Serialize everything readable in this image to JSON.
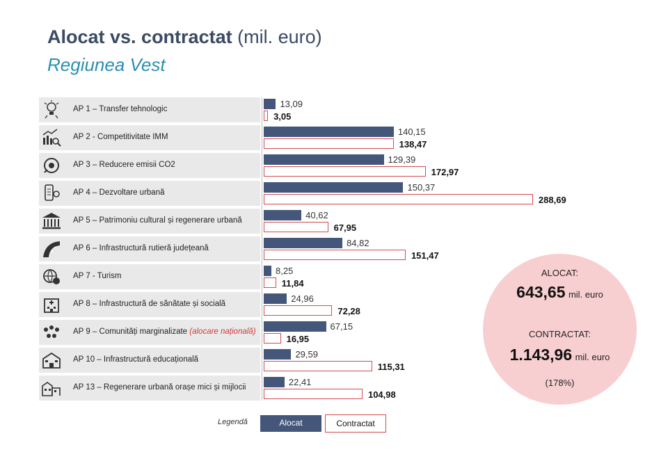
{
  "header": {
    "title_bold": "Alocat vs. contractat",
    "title_unit": " (mil. euro)",
    "subtitle": "Regiunea Vest"
  },
  "chart_data": {
    "type": "bar",
    "orientation": "horizontal",
    "title": "Alocat vs. contractat (mil. euro)",
    "subtitle": "Regiunea Vest",
    "categories": [
      "AP 1 – Transfer tehnologic",
      "AP 2 - Competitivitate IMM",
      "AP 3 – Reducere emisii CO2",
      "AP 4 – Dezvoltare urbană",
      "AP 5 – Patrimoniu cultural și regenerare urbană",
      "AP 6 – Infrastructură rutieră județeană",
      "AP 7 - Turism",
      "AP 8 – Infrastructură de sănătate și socială",
      "AP 9 – Comunități marginalizate",
      "AP 10 – Infrastructură educațională",
      "AP 13 – Regenerare urbană orașe mici și mijlocii"
    ],
    "category_notes": [
      "",
      "",
      "",
      "",
      "",
      "",
      "",
      "",
      "(alocare națională)",
      "",
      ""
    ],
    "series": [
      {
        "name": "Alocat",
        "values": [
          13.09,
          140.15,
          129.39,
          150.37,
          40.62,
          84.82,
          8.25,
          24.96,
          67.15,
          29.59,
          22.41
        ],
        "labels": [
          "13,09",
          "140,15",
          "129,39",
          "150,37",
          "40,62",
          "84,82",
          "8,25",
          "24,96",
          "67,15",
          "29,59",
          "22,41"
        ],
        "color": "#44577a"
      },
      {
        "name": "Contractat",
        "values": [
          3.05,
          138.47,
          172.97,
          288.69,
          67.95,
          151.47,
          11.84,
          72.28,
          16.95,
          115.31,
          104.98
        ],
        "labels": [
          "3,05",
          "138,47",
          "172,97",
          "288,69",
          "67,95",
          "151,47",
          "11,84",
          "72,28",
          "16,95",
          "115,31",
          "104,98"
        ],
        "color": "#d54a4e"
      }
    ],
    "xlim": [
      0,
      300
    ],
    "legend": {
      "title": "Legendă",
      "position": "bottom-center"
    }
  },
  "icons": [
    "lightbulb-gear-icon",
    "growth-chart-icon",
    "co2-reduction-icon",
    "smartphone-city-icon",
    "museum-icon",
    "road-icon",
    "tourism-globe-icon",
    "hospital-icon",
    "community-icon",
    "school-icon",
    "small-town-icon"
  ],
  "totals": {
    "alocat_label": "ALOCAT:",
    "alocat_value": "643,65",
    "contractat_label": "CONTRACTAT:",
    "contractat_value": "1.143,96",
    "unit": "mil. euro",
    "ratio": "(178%)"
  },
  "legend": {
    "title": "Legendă",
    "alocat": "Alocat",
    "contractat": "Contractat"
  }
}
